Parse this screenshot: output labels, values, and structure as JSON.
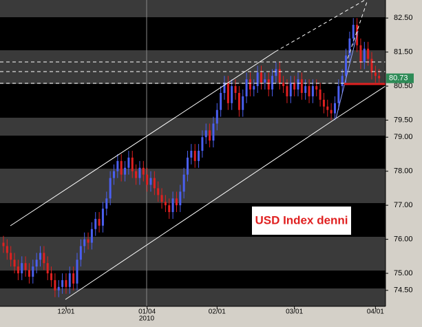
{
  "chart_data": {
    "type": "candlestick",
    "title": "USD Index denni",
    "year_label": "2010",
    "up_color": "#4a5ff0",
    "down_color": "#e02020",
    "categories": [
      null,
      null,
      null,
      null,
      null,
      null,
      null,
      null,
      null,
      null,
      null,
      null,
      null,
      null,
      null,
      null,
      null,
      "12/01",
      null,
      null,
      null,
      null,
      null,
      null,
      null,
      null,
      null,
      null,
      null,
      null,
      null,
      null,
      null,
      null,
      null,
      null,
      null,
      null,
      null,
      "01/04",
      null,
      null,
      null,
      null,
      null,
      null,
      null,
      null,
      null,
      null,
      null,
      null,
      null,
      null,
      null,
      null,
      null,
      null,
      "02/01",
      null,
      null,
      null,
      null,
      null,
      null,
      null,
      null,
      null,
      null,
      null,
      null,
      null,
      null,
      null,
      null,
      null,
      null,
      null,
      null,
      "03/01",
      null,
      null,
      null,
      null,
      null,
      null,
      null,
      null,
      null,
      null,
      null,
      null,
      null,
      null,
      null,
      null,
      null,
      null,
      null,
      null,
      null,
      "04/01",
      null
    ],
    "open": [
      75.9,
      75.8,
      75.6,
      75.4,
      75.2,
      75.0,
      75.3,
      75.1,
      74.9,
      75.2,
      75.4,
      75.6,
      75.3,
      75.0,
      74.8,
      74.5,
      74.6,
      74.8,
      74.6,
      75.0,
      74.7,
      75.4,
      75.8,
      76.0,
      75.9,
      76.3,
      76.6,
      76.4,
      76.9,
      77.2,
      77.8,
      78.0,
      78.3,
      77.9,
      78.1,
      78.4,
      78.0,
      77.8,
      78.1,
      77.9,
      77.6,
      77.8,
      77.5,
      77.3,
      77.1,
      77.0,
      76.8,
      77.2,
      77.0,
      77.4,
      77.9,
      78.4,
      78.6,
      78.3,
      78.6,
      79.0,
      79.2,
      78.9,
      79.4,
      79.8,
      80.3,
      80.6,
      80.0,
      80.5,
      80.3,
      79.8,
      80.2,
      80.7,
      80.4,
      80.5,
      80.9,
      80.6,
      80.7,
      80.4,
      80.8,
      81.0,
      80.6,
      80.5,
      80.2,
      80.6,
      80.4,
      80.7,
      80.3,
      80.5,
      80.2,
      80.5,
      80.4,
      80.1,
      79.9,
      79.8,
      79.7,
      80.0,
      80.5,
      80.8,
      81.4,
      81.9,
      82.3,
      81.7,
      81.2,
      81.6,
      81.3,
      80.9,
      80.8
    ],
    "high": [
      76.1,
      76.0,
      75.8,
      75.6,
      75.4,
      75.5,
      75.5,
      75.3,
      75.4,
      75.6,
      75.8,
      75.8,
      75.5,
      75.2,
      75.0,
      74.8,
      75.0,
      75.0,
      75.2,
      75.2,
      75.6,
      76.0,
      76.2,
      76.2,
      76.5,
      76.8,
      76.8,
      77.1,
      77.4,
      78.0,
      78.2,
      78.5,
      78.5,
      78.3,
      78.6,
      78.6,
      78.2,
      78.3,
      78.3,
      78.1,
      78.0,
      78.0,
      77.7,
      77.5,
      77.3,
      77.2,
      77.4,
      77.4,
      77.6,
      78.1,
      78.6,
      78.8,
      78.8,
      78.8,
      79.2,
      79.4,
      79.4,
      79.6,
      80.0,
      80.5,
      80.8,
      80.8,
      80.7,
      80.7,
      80.5,
      80.4,
      80.9,
      80.9,
      80.7,
      81.1,
      81.1,
      80.9,
      80.9,
      81.0,
      81.2,
      81.2,
      80.8,
      80.7,
      80.8,
      80.8,
      80.9,
      80.9,
      80.7,
      80.7,
      80.7,
      80.7,
      80.6,
      80.3,
      80.1,
      80.0,
      80.2,
      80.7,
      81.0,
      81.6,
      82.1,
      82.5,
      82.5,
      81.9,
      81.8,
      81.8,
      81.5,
      81.1,
      81.0
    ],
    "low": [
      75.6,
      75.4,
      75.2,
      75.0,
      74.8,
      74.8,
      74.9,
      74.7,
      74.7,
      75.0,
      75.2,
      75.1,
      74.8,
      74.6,
      74.3,
      74.3,
      74.4,
      74.4,
      74.4,
      74.5,
      74.5,
      75.2,
      75.6,
      75.7,
      75.7,
      76.1,
      76.2,
      76.2,
      76.7,
      77.0,
      77.6,
      77.8,
      77.7,
      77.7,
      77.9,
      77.8,
      77.6,
      77.6,
      77.7,
      77.4,
      77.4,
      77.3,
      77.1,
      76.9,
      76.8,
      76.6,
      76.6,
      76.8,
      76.8,
      77.2,
      77.7,
      78.2,
      78.1,
      78.1,
      78.4,
      78.8,
      78.7,
      78.7,
      79.2,
      79.6,
      80.1,
      79.8,
      79.8,
      80.1,
      79.6,
      79.6,
      80.0,
      80.2,
      80.2,
      80.3,
      80.4,
      80.4,
      80.2,
      80.2,
      80.6,
      80.4,
      80.3,
      80.0,
      80.0,
      80.2,
      80.2,
      80.1,
      80.1,
      80.0,
      80.0,
      80.2,
      79.9,
      79.7,
      79.6,
      79.5,
      79.5,
      79.8,
      80.3,
      80.6,
      81.2,
      81.7,
      81.5,
      81.0,
      81.0,
      81.1,
      80.7,
      80.6,
      80.6
    ],
    "close": [
      75.8,
      75.6,
      75.4,
      75.2,
      75.0,
      75.3,
      75.1,
      74.9,
      75.2,
      75.4,
      75.6,
      75.3,
      75.0,
      74.8,
      74.5,
      74.6,
      74.8,
      74.6,
      75.0,
      74.7,
      75.4,
      75.8,
      76.0,
      75.9,
      76.3,
      76.6,
      76.4,
      76.9,
      77.2,
      77.8,
      78.0,
      78.3,
      77.9,
      78.1,
      78.4,
      78.0,
      77.8,
      78.1,
      77.9,
      77.6,
      77.8,
      77.5,
      77.3,
      77.1,
      77.0,
      76.8,
      77.2,
      77.0,
      77.4,
      77.9,
      78.4,
      78.6,
      78.3,
      78.6,
      79.0,
      79.2,
      78.9,
      79.4,
      79.8,
      80.3,
      80.6,
      80.0,
      80.5,
      80.3,
      79.8,
      80.2,
      80.7,
      80.4,
      80.5,
      80.9,
      80.6,
      80.7,
      80.4,
      80.8,
      81.0,
      80.6,
      80.5,
      80.2,
      80.6,
      80.4,
      80.7,
      80.3,
      80.5,
      80.2,
      80.5,
      80.4,
      80.1,
      79.9,
      79.8,
      79.7,
      80.0,
      80.5,
      80.8,
      81.4,
      81.9,
      82.3,
      81.7,
      81.2,
      81.6,
      81.3,
      80.9,
      80.8,
      80.73
    ],
    "ylim": [
      74.03,
      83.03
    ],
    "yticks": [
      {
        "value": 74.5,
        "label": "74.50"
      },
      {
        "value": 75,
        "label": "75.00"
      },
      {
        "value": 76,
        "label": "76.00"
      },
      {
        "value": 77,
        "label": "77.00"
      },
      {
        "value": 78,
        "label": "78.00"
      },
      {
        "value": 79,
        "label": "79.00"
      },
      {
        "value": 79.5,
        "label": "79.50"
      },
      {
        "value": 80.5,
        "label": "80.50"
      },
      {
        "value": 81.5,
        "label": "81.50"
      },
      {
        "value": 82.5,
        "label": "82.50"
      }
    ],
    "last_price": 80.73,
    "last_color": "#2e8b57"
  }
}
